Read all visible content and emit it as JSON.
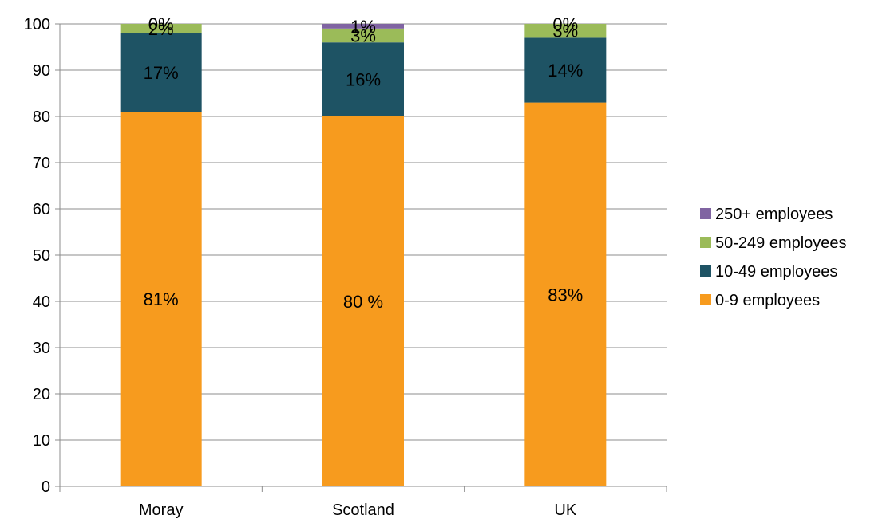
{
  "chart_data": {
    "type": "bar",
    "stacked": true,
    "categories": [
      "Moray",
      "Scotland",
      "UK"
    ],
    "series": [
      {
        "name": "0-9 employees",
        "color": "#F79B1E",
        "values": [
          81,
          80,
          83
        ],
        "labels": [
          "81%",
          "80 %",
          "83%"
        ]
      },
      {
        "name": "10-49 employees",
        "color": "#1E5364",
        "values": [
          17,
          16,
          14
        ],
        "labels": [
          "17%",
          "16%",
          "14%"
        ]
      },
      {
        "name": "50-249 employees",
        "color": "#9BBB59",
        "values": [
          2,
          3,
          3
        ],
        "labels": [
          "2%",
          "3%",
          "3%"
        ]
      },
      {
        "name": "250+ employees",
        "color": "#8064A2",
        "values": [
          0,
          1,
          0
        ],
        "labels": [
          "0%",
          "1%",
          "0%"
        ]
      }
    ],
    "ylim": [
      0,
      100
    ],
    "yticks": [
      0,
      10,
      20,
      30,
      40,
      50,
      60,
      70,
      80,
      90,
      100
    ],
    "grid": true,
    "legend": {
      "position": "right",
      "order": [
        "250+ employees",
        "50-249 employees",
        "10-49 employees",
        "0-9 employees"
      ]
    }
  }
}
